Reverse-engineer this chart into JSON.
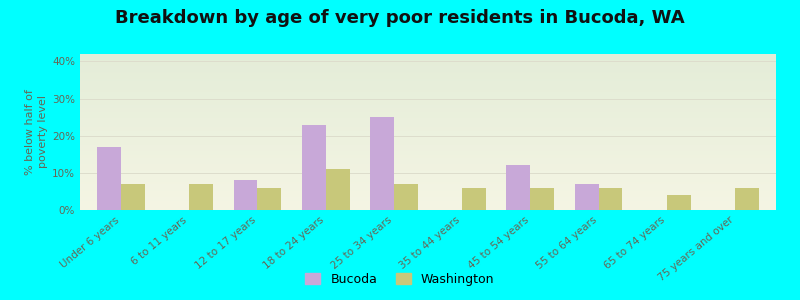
{
  "title": "Breakdown by age of very poor residents in Bucoda, WA",
  "ylabel": "% below half of\npoverty level",
  "categories": [
    "Under 6 years",
    "6 to 11 years",
    "12 to 17 years",
    "18 to 24 years",
    "25 to 34 years",
    "35 to 44 years",
    "45 to 54 years",
    "55 to 64 years",
    "65 to 74 years",
    "75 years and over"
  ],
  "bucoda": [
    17,
    0,
    8,
    23,
    25,
    0,
    12,
    7,
    0,
    0
  ],
  "washington": [
    7,
    7,
    6,
    11,
    7,
    6,
    6,
    6,
    4,
    6
  ],
  "bucoda_color": "#c8a8d8",
  "washington_color": "#c8c87a",
  "ylim": [
    0,
    42
  ],
  "yticks": [
    0,
    10,
    20,
    30,
    40
  ],
  "ytick_labels": [
    "0%",
    "10%",
    "20%",
    "30%",
    "40%"
  ],
  "background_color": "#00ffff",
  "plot_bg_top": "#e4edd8",
  "plot_bg_bottom": "#f5f5e4",
  "title_fontsize": 13,
  "axis_label_fontsize": 8,
  "tick_fontsize": 7.5,
  "bar_width": 0.35,
  "legend_bucoda": "Bucoda",
  "legend_washington": "Washington",
  "grid_color": "#ddddcc",
  "text_color": "#666655"
}
